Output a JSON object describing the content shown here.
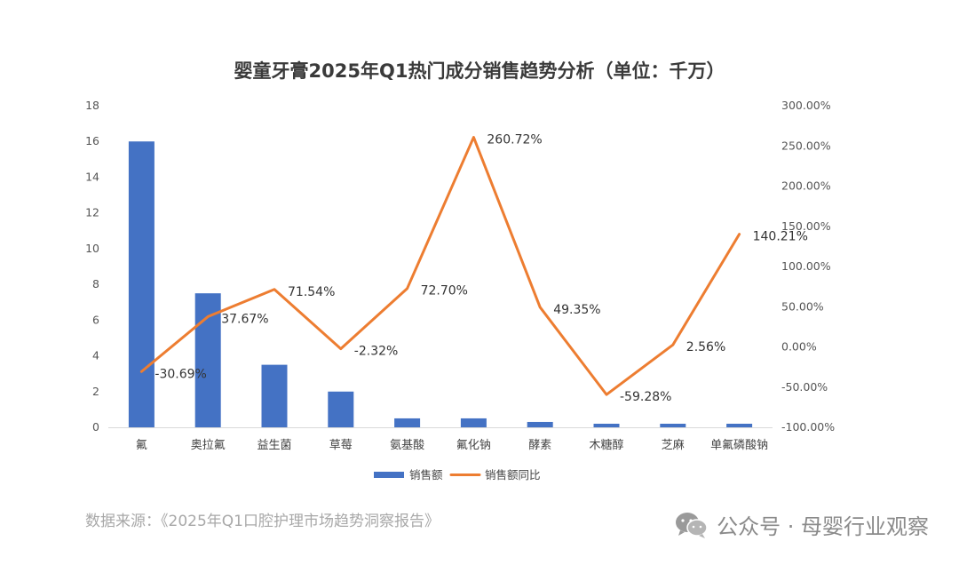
{
  "title": "婴童牙膏2025年Q1热门成分销售趋势分析（单位：千万）",
  "source": "数据来源：《2025年Q1口腔护理市场趋势洞察报告》",
  "watermark": "公众号 · 母婴行业观察",
  "colors": {
    "bar": "#4472C4",
    "line": "#ED7D31"
  },
  "chart_data": {
    "type": "bar",
    "categories": [
      "氟",
      "奥拉氟",
      "益生菌",
      "草莓",
      "氨基酸",
      "氟化钠",
      "酵素",
      "木糖醇",
      "芝麻",
      "单氟磷酸钠"
    ],
    "series": [
      {
        "name": "销售额",
        "type": "bar",
        "axis": "left",
        "values": [
          16,
          7.5,
          3.5,
          2,
          0.5,
          0.5,
          0.3,
          0.2,
          0.2,
          0.2
        ]
      },
      {
        "name": "销售额同比",
        "type": "line",
        "axis": "right",
        "values": [
          -30.69,
          37.67,
          71.54,
          -2.32,
          72.7,
          260.72,
          49.35,
          -59.28,
          2.56,
          140.21
        ],
        "labels": [
          "-30.69%",
          "37.67%",
          "71.54%",
          "-2.32%",
          "72.70%",
          "260.72%",
          "49.35%",
          "-59.28%",
          "2.56%",
          "140.21%"
        ]
      }
    ],
    "y_left": {
      "ylim": [
        0,
        18
      ],
      "ticks": [
        "0",
        "2",
        "4",
        "6",
        "8",
        "10",
        "12",
        "14",
        "16",
        "18"
      ]
    },
    "y_right": {
      "ylim": [
        -100,
        300
      ],
      "ticks": [
        "-100.00%",
        "-50.00%",
        "0.00%",
        "50.00%",
        "100.00%",
        "150.00%",
        "200.00%",
        "250.00%",
        "300.00%"
      ]
    },
    "grid": false,
    "legend": "bottom"
  }
}
